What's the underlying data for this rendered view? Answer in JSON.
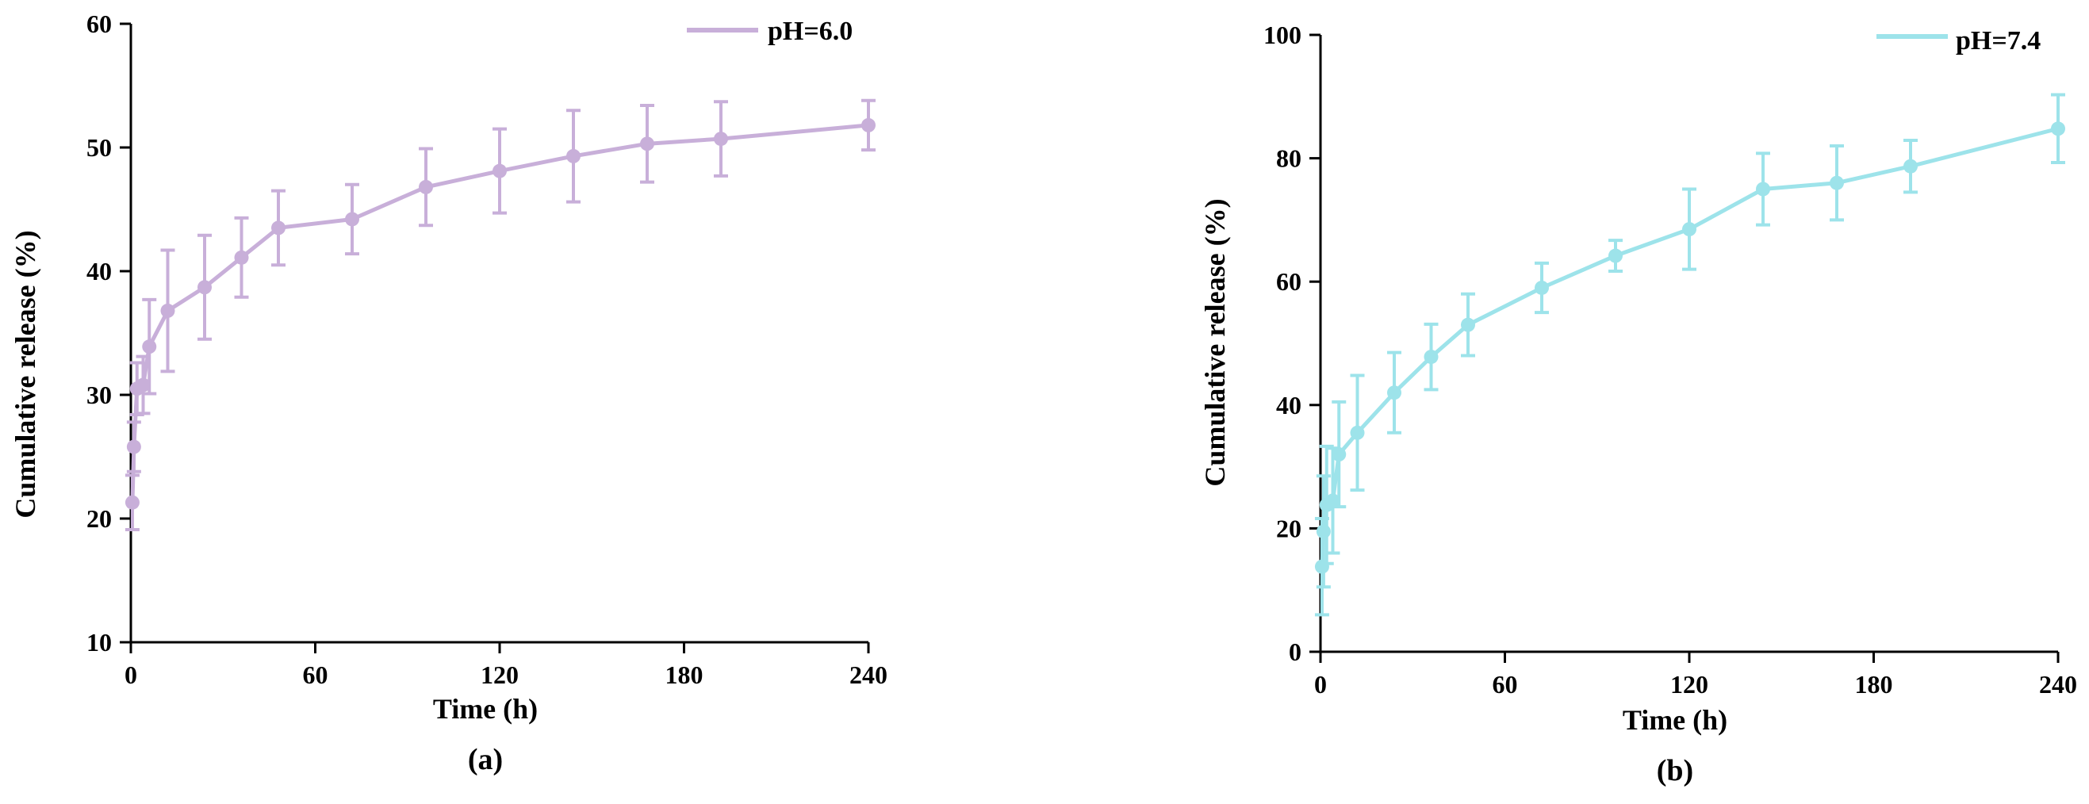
{
  "chart_data": [
    {
      "type": "line",
      "panel_label": "(a)",
      "xlabel": "Time (h)",
      "ylabel": "Cumulative release (%)",
      "xlim": [
        0,
        240
      ],
      "ylim": [
        10,
        60
      ],
      "xticks": [
        0,
        60,
        120,
        180,
        240
      ],
      "yticks": [
        10,
        20,
        30,
        40,
        50,
        60
      ],
      "legend_position": "top-right",
      "color": "#c8afd9",
      "series": [
        {
          "name": "pH=6.0",
          "x": [
            0.5,
            1,
            2,
            4,
            6,
            12,
            24,
            36,
            48,
            72,
            96,
            120,
            144,
            168,
            192,
            240
          ],
          "y": [
            21.3,
            25.8,
            30.5,
            30.8,
            33.9,
            36.8,
            38.7,
            41.1,
            43.5,
            44.2,
            46.8,
            48.1,
            49.3,
            50.3,
            50.7,
            51.8
          ],
          "error": [
            2.2,
            2.0,
            2.1,
            2.3,
            3.8,
            4.9,
            4.2,
            3.2,
            3.0,
            2.8,
            3.1,
            3.4,
            3.7,
            3.1,
            3.0,
            2.0
          ]
        }
      ]
    },
    {
      "type": "line",
      "panel_label": "(b)",
      "xlabel": "Time (h)",
      "ylabel": "Cumulative release (%)",
      "xlim": [
        0,
        240
      ],
      "ylim": [
        0,
        100
      ],
      "xticks": [
        0,
        60,
        120,
        180,
        240
      ],
      "yticks": [
        0,
        20,
        40,
        60,
        80,
        100
      ],
      "legend_position": "top-right",
      "color": "#9de3ea",
      "series": [
        {
          "name": "pH=7.4",
          "x": [
            0.5,
            1,
            2,
            4,
            6,
            12,
            24,
            36,
            48,
            72,
            96,
            120,
            144,
            168,
            192,
            240
          ],
          "y": [
            13.8,
            19.5,
            23.8,
            24.5,
            32.0,
            35.5,
            42.0,
            47.8,
            53.0,
            59.0,
            64.2,
            68.5,
            75.0,
            76.0,
            78.7,
            84.8
          ],
          "error": [
            7.8,
            9.0,
            9.5,
            8.5,
            8.5,
            9.3,
            6.5,
            5.3,
            5.0,
            4.0,
            2.5,
            6.5,
            5.8,
            6.0,
            4.2,
            5.5
          ]
        }
      ]
    }
  ]
}
